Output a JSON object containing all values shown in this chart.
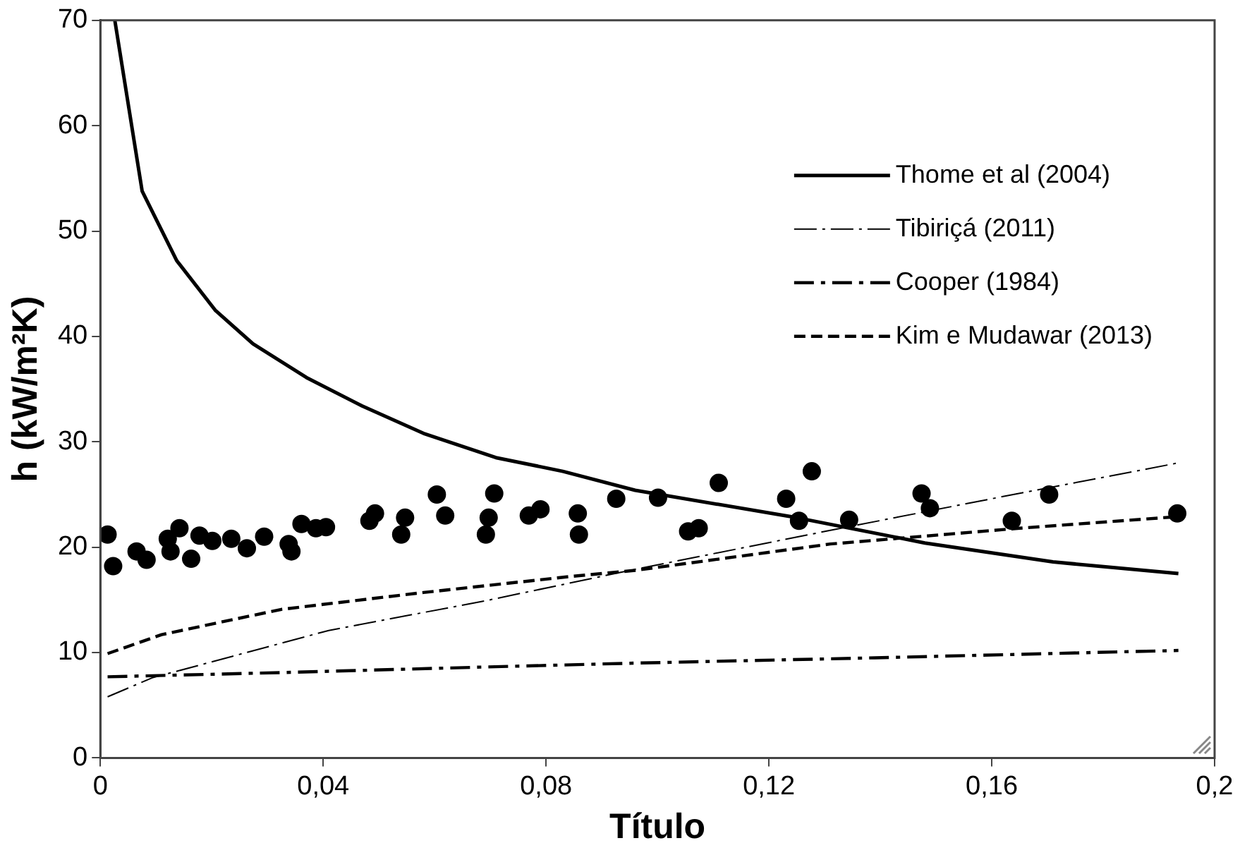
{
  "chart_data": {
    "type": "line",
    "xlabel": "Título",
    "ylabel": "h (kW/m²K)",
    "xlim": [
      0,
      0.2
    ],
    "xticks": [
      {
        "value": 0,
        "label": "0"
      },
      {
        "value": 0.04,
        "label": "0,04"
      },
      {
        "value": 0.08,
        "label": "0,08"
      },
      {
        "value": 0.12,
        "label": "0,12"
      },
      {
        "value": 0.16,
        "label": "0,16"
      },
      {
        "value": 0.2,
        "label": "0,2"
      }
    ],
    "ylim": [
      0,
      70
    ],
    "yticks": [
      0,
      10,
      20,
      30,
      40,
      50,
      60,
      70
    ],
    "grid": false,
    "legend": "top right",
    "series": [
      {
        "name": "Thome et al (2004)",
        "color": "#000000",
        "line_style": "solid",
        "marker": "none",
        "x": [
          0.0026,
          0.0075,
          0.0137,
          0.0206,
          0.0274,
          0.037,
          0.047,
          0.058,
          0.071,
          0.083,
          0.096,
          0.125,
          0.148,
          0.171,
          0.1935
        ],
        "values": [
          70,
          53.8,
          47.2,
          42.5,
          39.3,
          36.1,
          33.4,
          30.8,
          28.5,
          27.2,
          25.4,
          22.8,
          20.4,
          18.6,
          17.5
        ]
      },
      {
        "name": "Tibiriçá (2011)",
        "color": "#000000",
        "line_style": "dashed",
        "marker": "none",
        "x": [
          0.0013,
          0.0093,
          0.041,
          0.069,
          0.096,
          0.132,
          0.16,
          0.1935
        ],
        "values": [
          5.8,
          7.6,
          12.1,
          14.9,
          17.9,
          21.7,
          24.6,
          28.0
        ]
      },
      {
        "name": "Cooper (1984)",
        "color": "#000000",
        "line_style": "dashed",
        "marker": "none",
        "x": [
          0.0013,
          0.0325,
          0.067,
          0.096,
          0.139,
          0.1935
        ],
        "values": [
          7.7,
          8.1,
          8.6,
          9.0,
          9.5,
          10.2
        ]
      },
      {
        "name": "Kim e Mudawar (2013)",
        "color": "#000000",
        "line_style": "dashed",
        "marker": "none",
        "x": [
          0.0013,
          0.011,
          0.0325,
          0.058,
          0.084,
          0.096,
          0.131,
          0.165,
          0.1935
        ],
        "values": [
          9.9,
          11.7,
          14.1,
          15.7,
          17.2,
          17.8,
          20.3,
          21.8,
          22.9
        ]
      },
      {
        "type": "scatter",
        "color": "#000000",
        "marker": "circle",
        "x": [
          0.0013,
          0.0023,
          0.0065,
          0.0083,
          0.0121,
          0.0126,
          0.0142,
          0.0163,
          0.0178,
          0.0201,
          0.0235,
          0.0263,
          0.0294,
          0.0338,
          0.0343,
          0.0361,
          0.0387,
          0.0405,
          0.0483,
          0.0493,
          0.054,
          0.0547,
          0.0604,
          0.0619,
          0.0692,
          0.0697,
          0.0707,
          0.0769,
          0.079,
          0.0857,
          0.0859,
          0.0926,
          0.1001,
          0.1055,
          0.1074,
          0.111,
          0.1231,
          0.1254,
          0.1277,
          0.1344,
          0.1474,
          0.1489,
          0.1636,
          0.1703,
          0.1933
        ],
        "values": [
          21.2,
          18.2,
          19.6,
          18.8,
          20.8,
          19.6,
          21.8,
          18.9,
          21.1,
          20.6,
          20.8,
          19.9,
          21.0,
          20.3,
          19.6,
          22.2,
          21.8,
          21.9,
          22.5,
          23.2,
          21.2,
          22.8,
          25.0,
          23.0,
          21.2,
          22.8,
          25.1,
          23.0,
          23.6,
          23.2,
          21.2,
          24.6,
          24.7,
          21.5,
          21.8,
          26.1,
          24.6,
          22.5,
          27.2,
          22.6,
          25.1,
          23.7,
          22.5,
          25.0,
          23.2
        ]
      }
    ]
  }
}
